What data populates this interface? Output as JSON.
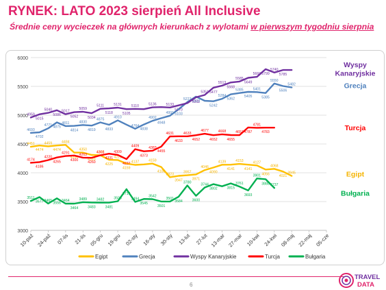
{
  "header": {
    "title": "RYNEK: LATO 2023 sierpień All Inclusive",
    "subtitle_pre": "Średnie ceny wycieczek na głównych kierunkach z wylotami ",
    "subtitle_ul": "w pierwszym tygodniu sierpnia"
  },
  "footer": {
    "page_number": "6",
    "logo_line1": "TRAVEL",
    "logo_line2": "DATA"
  },
  "chart_data": {
    "type": "line",
    "title": "",
    "xlabel": "",
    "ylabel": "",
    "ylim": [
      3000,
      6000
    ],
    "yticks": [
      3000,
      3500,
      4000,
      4500,
      5000,
      5500,
      6000
    ],
    "grid": true,
    "legend_position": "bottom",
    "x_tick_labels": [
      "10-paź",
      "24-paź",
      "07-lis",
      "21-lis",
      "05-gru",
      "19-gru",
      "02-sty",
      "16-sty",
      "30-sty",
      "13-lut",
      "27-lut",
      "13-mar",
      "27-mar",
      "10-kwi",
      "24-kwi",
      "08-maj",
      "22-maj",
      "05-cze"
    ],
    "series": [
      {
        "name": "Egipt",
        "color": "#ffc000",
        "label_color": "#f5b400",
        "values": [
          4451,
          4474,
          4459,
          4474,
          4484,
          4350,
          4350,
          4310,
          4305,
          4225,
          4221,
          4159,
          4137,
          4145,
          4159,
          4100,
          3923,
          3947,
          3957,
          3971,
          4046,
          4090,
          4139,
          4141,
          4153,
          4141,
          4127,
          4056,
          4068,
          4021,
          3945
        ],
        "labels": [
          4451,
          4474,
          4459,
          4474,
          4484,
          4350,
          4350,
          4310,
          4305,
          4225,
          4221,
          4159,
          4137,
          null,
          4159,
          4100,
          3923,
          3947,
          3957,
          3971,
          4046,
          4090,
          4139,
          4141,
          4153,
          4141,
          4127,
          4056,
          4068,
          4021,
          3945
        ],
        "end_label": "Egipt"
      },
      {
        "name": "Grecja",
        "color": "#4f81bd",
        "label_color": "#4f81bd",
        "values": [
          4693,
          4702,
          4771,
          4875,
          4811,
          4814,
          4830,
          4819,
          4875,
          4833,
          4910,
          4836,
          4764,
          4838,
          4902,
          4948,
          4991,
          5103,
          5227,
          5323,
          5250,
          5242,
          5284,
          5362,
          5385,
          5405,
          5401,
          5385,
          5550,
          5506,
          5482
        ],
        "labels": [
          4693,
          4702,
          4771,
          4875,
          4811,
          4814,
          4830,
          4819,
          4875,
          4833,
          4910,
          null,
          4764,
          4838,
          4902,
          4948,
          4991,
          5103,
          5227,
          5323,
          null,
          5242,
          5284,
          5362,
          5385,
          5405,
          5401,
          5385,
          5550,
          5506,
          5482
        ],
        "end_label": "Grecja"
      },
      {
        "name": "Wyspy Kanaryjskie",
        "color": "#7030a0",
        "label_color": "#7030a0",
        "values": [
          4959,
          5015,
          5040,
          5086,
          5017,
          5052,
          5059,
          5034,
          5111,
          5118,
          5131,
          5105,
          5110,
          5105,
          5136,
          5140,
          5133,
          5170,
          5210,
          5311,
          5351,
          5477,
          5513,
          5568,
          5585,
          5649,
          5666,
          5799,
          5740,
          5785,
          5785
        ],
        "labels": [
          4959,
          5015,
          5040,
          5086,
          5017,
          5052,
          5059,
          5034,
          5111,
          5118,
          5131,
          5105,
          5110,
          null,
          5136,
          null,
          5133,
          5170,
          null,
          5311,
          5351,
          5477,
          5513,
          5568,
          5585,
          5649,
          5666,
          5799,
          5740,
          5785,
          null
        ],
        "end_label": "Wyspy\nKanaryjskie"
      },
      {
        "name": "Turcja",
        "color": "#ff0000",
        "label_color": "#ff0000",
        "values": [
          4174,
          4186,
          4220,
          4265,
          4291,
          4300,
          4263,
          4260,
          4303,
          4331,
          4309,
          4237,
          4409,
          4373,
          4383,
          4455,
          4631,
          4633,
          4633,
          4652,
          4677,
          4652,
          4668,
          4655,
          4653,
          4787,
          4781,
          4783,
          4783
        ],
        "labels": [
          4174,
          4186,
          4220,
          4265,
          4291,
          4300,
          4263,
          4260,
          4303,
          4331,
          4309,
          4237,
          4409,
          4373,
          4383,
          4455,
          4631,
          4633,
          4633,
          4652,
          4677,
          4652,
          4668,
          4655,
          4653,
          4787,
          4781,
          4783,
          null
        ],
        "end_label": "Turcja"
      },
      {
        "name": "Bułgaria",
        "color": "#00b050",
        "label_color": "#00b050",
        "values": [
          3511,
          3577,
          3465,
          3556,
          3464,
          3464,
          3489,
          3483,
          3482,
          3481,
          3506,
          3716,
          3494,
          3545,
          3542,
          3501,
          3501,
          3584,
          3780,
          3600,
          3744,
          3802,
          3765,
          3815,
          3761,
          3693,
          3901,
          3888,
          3737
        ],
        "labels": [
          3511,
          3577,
          3465,
          3556,
          3464,
          3464,
          3489,
          3483,
          3482,
          3481,
          3506,
          3716,
          3494,
          3545,
          3542,
          3501,
          3501,
          3584,
          3780,
          3600,
          3744,
          3802,
          null,
          3815,
          3761,
          3693,
          3901,
          3888,
          3737
        ],
        "end_label": "Bułgaria"
      }
    ]
  }
}
